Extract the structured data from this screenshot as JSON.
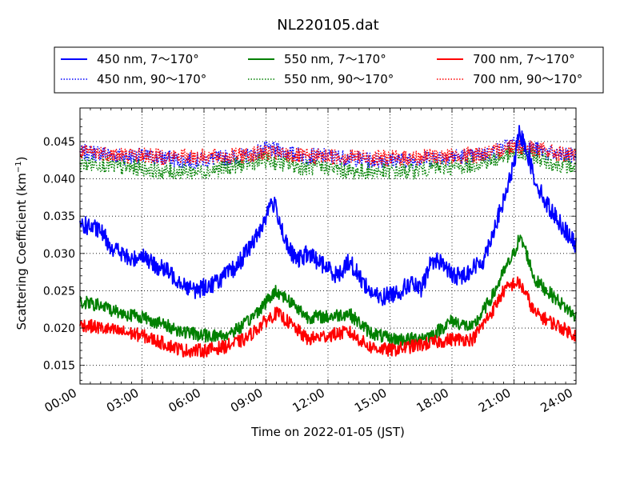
{
  "chart_data": {
    "type": "line",
    "title": "NL220105.dat",
    "xlabel": "Time on 2022-01-05 (JST)",
    "ylabel": "Scattering Coefficient (km",
    "ylabel_unit_exp": "−1",
    "ylabel_close": ")",
    "x_ticks": [
      "00:00",
      "03:00",
      "06:00",
      "09:00",
      "12:00",
      "15:00",
      "18:00",
      "21:00",
      "24:00"
    ],
    "xlim": [
      0,
      24
    ],
    "ylim": [
      0.0125,
      0.0495
    ],
    "y_ticks": [
      "0.015",
      "0.020",
      "0.025",
      "0.030",
      "0.035",
      "0.040",
      "0.045"
    ],
    "grid": true,
    "legend_position": "top-center",
    "series": [
      {
        "name": "450 nm, 7～170°",
        "color": "#0000ff",
        "style": "solid",
        "x": [
          0,
          0.5,
          1,
          1.5,
          2,
          2.5,
          3,
          3.5,
          4,
          4.5,
          5,
          5.5,
          6,
          6.5,
          7,
          7.5,
          8,
          8.5,
          9,
          9.25,
          9.5,
          10,
          10.5,
          11,
          11.5,
          12,
          12.5,
          13,
          13.5,
          14,
          14.5,
          15,
          15.5,
          16,
          16.5,
          17,
          17.5,
          18,
          18.5,
          19,
          19.5,
          20,
          20.5,
          21,
          21.25,
          21.5,
          22,
          22.5,
          23,
          23.5,
          24
        ],
        "y": [
          0.034,
          0.0335,
          0.033,
          0.031,
          0.03,
          0.029,
          0.03,
          0.0285,
          0.028,
          0.027,
          0.026,
          0.025,
          0.0255,
          0.026,
          0.027,
          0.028,
          0.03,
          0.032,
          0.035,
          0.037,
          0.036,
          0.031,
          0.029,
          0.03,
          0.029,
          0.028,
          0.027,
          0.029,
          0.027,
          0.025,
          0.024,
          0.0245,
          0.025,
          0.026,
          0.025,
          0.029,
          0.029,
          0.027,
          0.027,
          0.028,
          0.029,
          0.033,
          0.037,
          0.042,
          0.046,
          0.045,
          0.04,
          0.037,
          0.035,
          0.033,
          0.031
        ]
      },
      {
        "name": "450 nm, 90～170°",
        "color": "#0000ff",
        "style": "dotted",
        "x": [
          0,
          1,
          2,
          3,
          4,
          5,
          6,
          7,
          8,
          9,
          10,
          11,
          12,
          13,
          14,
          15,
          16,
          17,
          18,
          19,
          20,
          21,
          22,
          23,
          24
        ],
        "y": [
          0.0435,
          0.0435,
          0.043,
          0.043,
          0.0428,
          0.0425,
          0.0425,
          0.0428,
          0.043,
          0.044,
          0.0435,
          0.043,
          0.043,
          0.0428,
          0.0425,
          0.0425,
          0.0425,
          0.0428,
          0.043,
          0.043,
          0.0435,
          0.0448,
          0.044,
          0.0432,
          0.043
        ]
      },
      {
        "name": "550 nm, 7～170°",
        "color": "#008000",
        "style": "solid",
        "x": [
          0,
          1,
          2,
          3,
          4,
          5,
          6,
          7,
          8,
          9,
          9.5,
          10,
          11,
          12,
          13,
          14,
          15,
          16,
          17,
          18,
          19,
          20,
          20.5,
          21,
          21.25,
          21.5,
          22,
          23,
          24
        ],
        "y": [
          0.0235,
          0.023,
          0.022,
          0.0215,
          0.0205,
          0.0195,
          0.019,
          0.019,
          0.0205,
          0.0235,
          0.025,
          0.024,
          0.0215,
          0.0215,
          0.022,
          0.0195,
          0.0185,
          0.0185,
          0.019,
          0.021,
          0.02,
          0.0245,
          0.0275,
          0.03,
          0.032,
          0.031,
          0.0265,
          0.024,
          0.0215
        ]
      },
      {
        "name": "550 nm, 90～170°",
        "color": "#008000",
        "style": "dotted",
        "x": [
          0,
          1,
          2,
          3,
          4,
          5,
          6,
          7,
          8,
          9,
          10,
          11,
          12,
          13,
          14,
          15,
          16,
          17,
          18,
          19,
          20,
          21,
          22,
          23,
          24
        ],
        "y": [
          0.042,
          0.042,
          0.0415,
          0.0415,
          0.041,
          0.041,
          0.041,
          0.0415,
          0.042,
          0.0425,
          0.042,
          0.0415,
          0.0415,
          0.041,
          0.041,
          0.041,
          0.041,
          0.0415,
          0.0415,
          0.042,
          0.0425,
          0.0435,
          0.043,
          0.042,
          0.0415
        ]
      },
      {
        "name": "700 nm, 7～170°",
        "color": "#ff0000",
        "style": "solid",
        "x": [
          0,
          1,
          2,
          3,
          4,
          5,
          6,
          7,
          8,
          9,
          9.5,
          10,
          11,
          12,
          13,
          14,
          15,
          16,
          17,
          18,
          19,
          20,
          20.5,
          21,
          21.25,
          21.5,
          22,
          23,
          24
        ],
        "y": [
          0.0205,
          0.02,
          0.0195,
          0.019,
          0.018,
          0.017,
          0.017,
          0.0175,
          0.0185,
          0.021,
          0.022,
          0.021,
          0.0185,
          0.019,
          0.0195,
          0.0175,
          0.017,
          0.0175,
          0.018,
          0.0185,
          0.0185,
          0.0225,
          0.025,
          0.026,
          0.026,
          0.025,
          0.022,
          0.0205,
          0.019
        ]
      },
      {
        "name": "700 nm, 90～170°",
        "color": "#ff0000",
        "style": "dotted",
        "x": [
          0,
          1,
          2,
          3,
          4,
          5,
          6,
          7,
          8,
          9,
          10,
          11,
          12,
          13,
          14,
          15,
          16,
          17,
          18,
          19,
          20,
          21,
          22,
          23,
          24
        ],
        "y": [
          0.0435,
          0.0435,
          0.0432,
          0.0432,
          0.043,
          0.043,
          0.043,
          0.043,
          0.0432,
          0.0435,
          0.0432,
          0.043,
          0.043,
          0.043,
          0.0428,
          0.0428,
          0.0428,
          0.043,
          0.043,
          0.0432,
          0.0435,
          0.0445,
          0.044,
          0.0435,
          0.043
        ]
      }
    ]
  }
}
